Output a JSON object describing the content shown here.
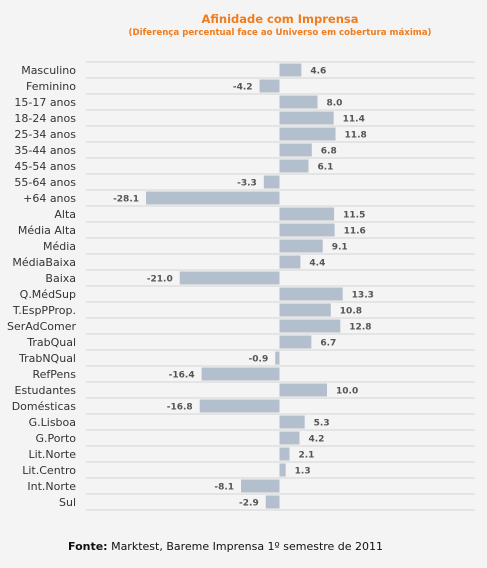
{
  "chart_data": {
    "type": "bar",
    "orientation": "horizontal",
    "title": "Afinidade com Imprensa",
    "subtitle": "(Diferença percentual face ao Universo em cobertura máxima)",
    "categories": [
      "Masculino",
      "Feminino",
      "15-17 anos",
      "18-24 anos",
      "25-34 anos",
      "35-44 anos",
      "45-54 anos",
      "55-64 anos",
      "+64 anos",
      "Alta",
      "Média Alta",
      "Média",
      "MédiaBaixa",
      "Baixa",
      "Q.MédSup",
      "T.EspPProp.",
      "SerAdComer",
      "TrabQual",
      "TrabNQual",
      "RefPens",
      "Estudantes",
      "Domésticas",
      "G.Lisboa",
      "G.Porto",
      "Lit.Norte",
      "Lit.Centro",
      "Int.Norte",
      "Sul"
    ],
    "values": [
      4.6,
      -4.2,
      8.0,
      11.4,
      11.8,
      6.8,
      6.1,
      -3.3,
      -28.1,
      11.5,
      11.6,
      9.1,
      4.4,
      -21.0,
      13.3,
      10.8,
      12.8,
      6.7,
      -0.9,
      -16.4,
      10.0,
      -16.8,
      5.3,
      4.2,
      2.1,
      1.3,
      -8.1,
      -2.9
    ],
    "value_labels": [
      "4.6",
      "-4.2",
      "8.0",
      "11.4",
      "11.8",
      "6.8",
      "6.1",
      "-3.3",
      "-28.1",
      "11.5",
      "11.6",
      "9.1",
      "4.4",
      "-21.0",
      "13.3",
      "10.8",
      "12.8",
      "6.7",
      "-0.9",
      "-16.4",
      "10.0",
      "-16.8",
      "5.3",
      "4.2",
      "2.1",
      "1.3",
      "-8.1",
      "-2.9"
    ],
    "xlabel": "",
    "ylabel": "",
    "grid": true,
    "legend": "none"
  },
  "colors": {
    "bar": "#b3bfcc",
    "title": "#f07c1e",
    "value_label": "#555555",
    "category_label": "#333333",
    "grid": "#d3d3d3"
  },
  "source": {
    "label": "Fonte:",
    "text": " Marktest, Bareme Imprensa 1º semestre de 2011"
  }
}
